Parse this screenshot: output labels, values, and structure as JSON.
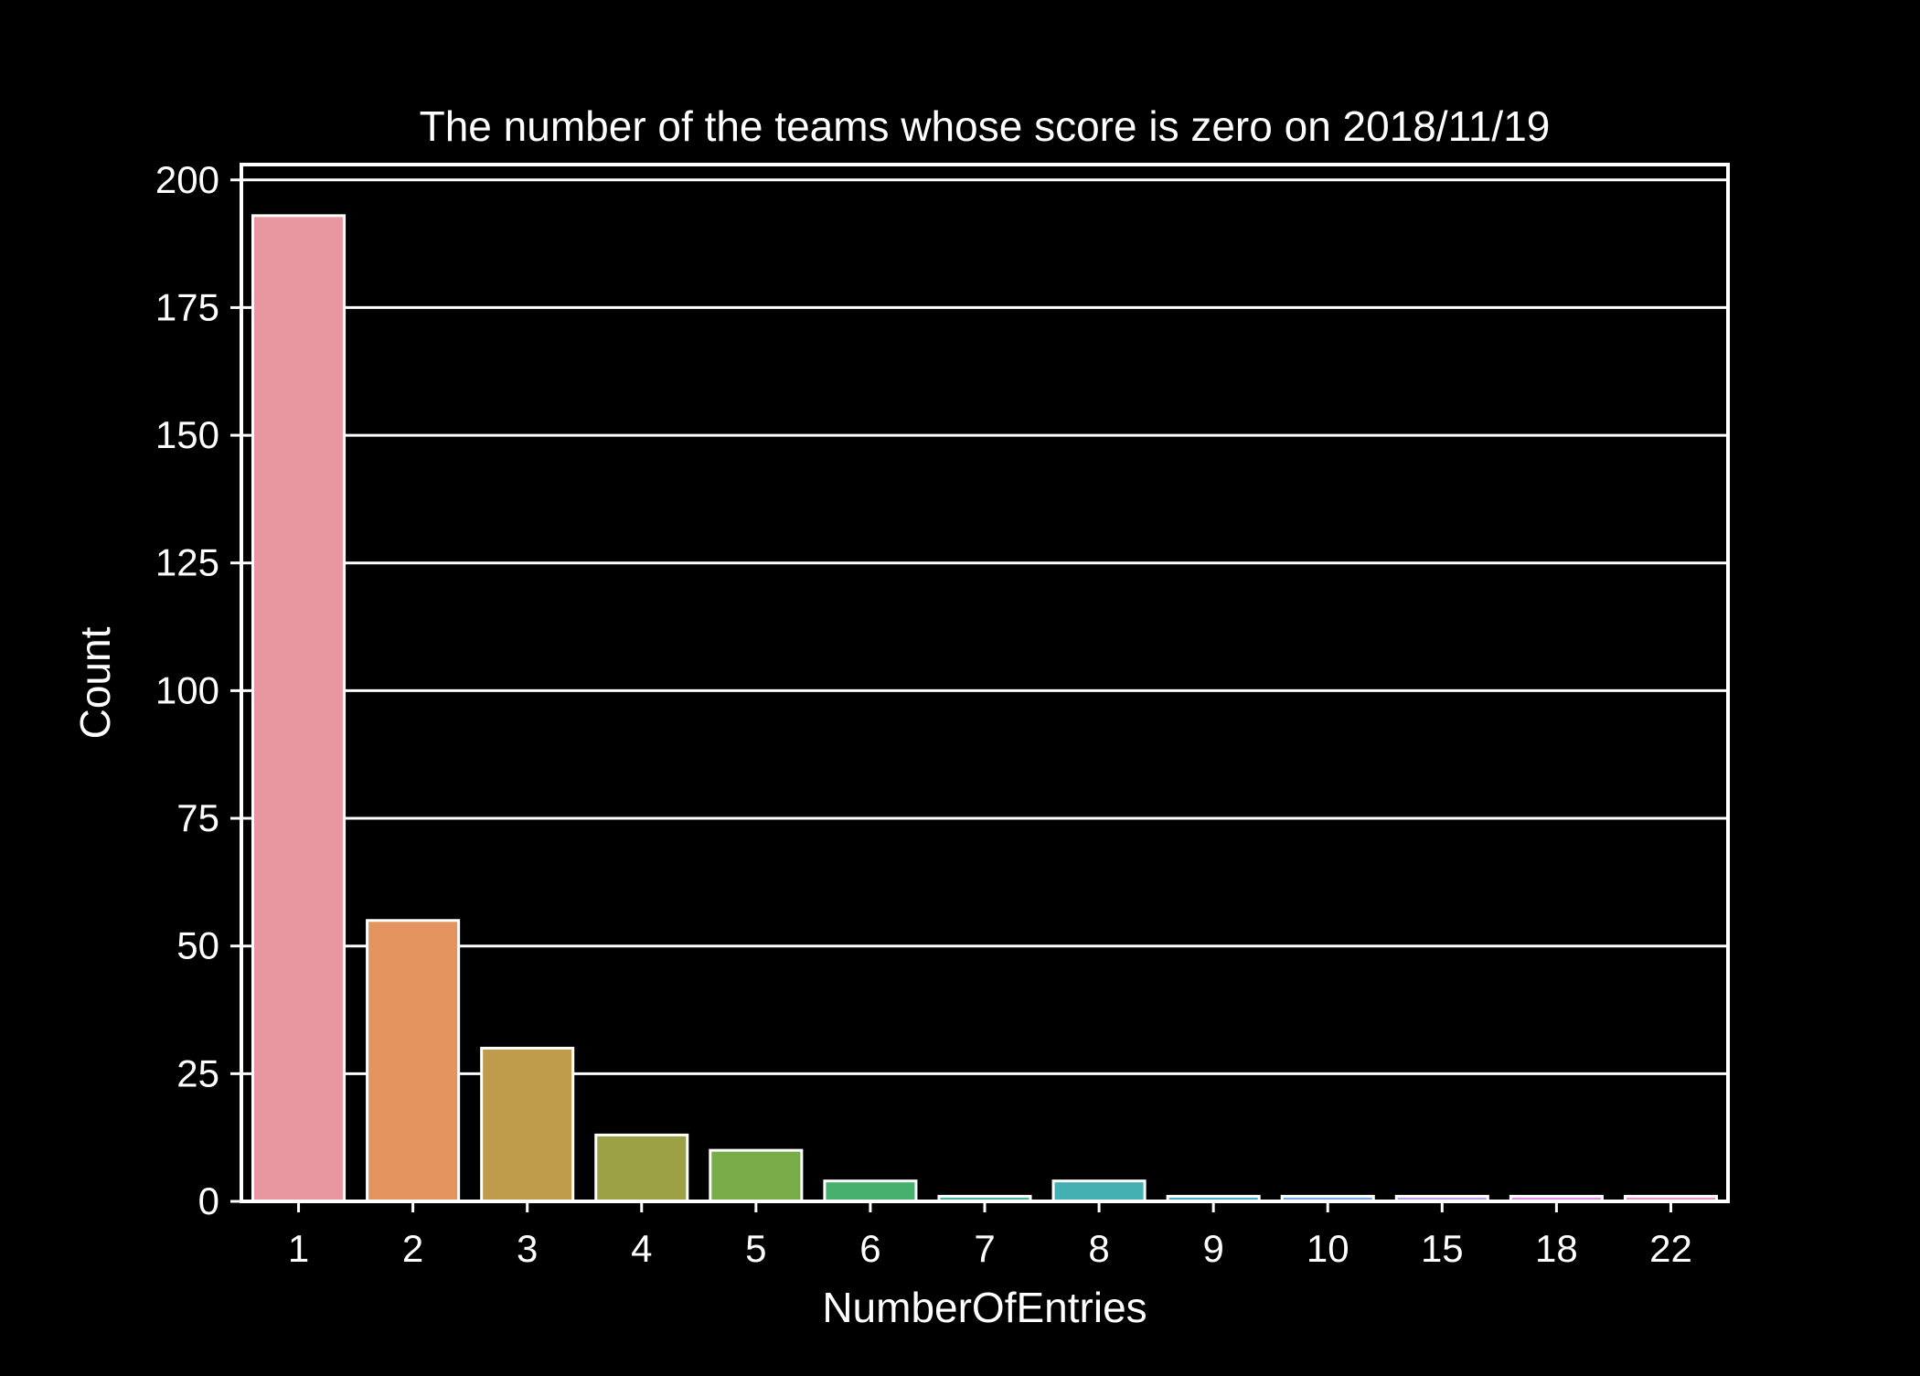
{
  "chart_data": {
    "type": "bar",
    "title": "The number of the teams whose score is zero on 2018/11/19",
    "xlabel": "NumberOfEntries",
    "ylabel": "Count",
    "categories": [
      "1",
      "2",
      "3",
      "4",
      "5",
      "6",
      "7",
      "8",
      "9",
      "10",
      "15",
      "18",
      "22"
    ],
    "values": [
      193,
      55,
      30,
      13,
      10,
      4,
      1,
      4,
      1,
      1,
      1,
      1,
      1
    ],
    "ylim": [
      0,
      203
    ],
    "yticks": [
      0,
      25,
      50,
      75,
      100,
      125,
      150,
      175,
      200
    ],
    "grid": "horizontal",
    "background": "#000000",
    "foreground": "#ffffff",
    "bar_colors": [
      "#e8969f",
      "#e4945f",
      "#be9c4c",
      "#9da146",
      "#78ac48",
      "#46b06e",
      "#48b29a",
      "#45b0b2",
      "#47adc6",
      "#7aa8e6",
      "#b89ef0",
      "#e28ee6",
      "#e896c4"
    ]
  }
}
